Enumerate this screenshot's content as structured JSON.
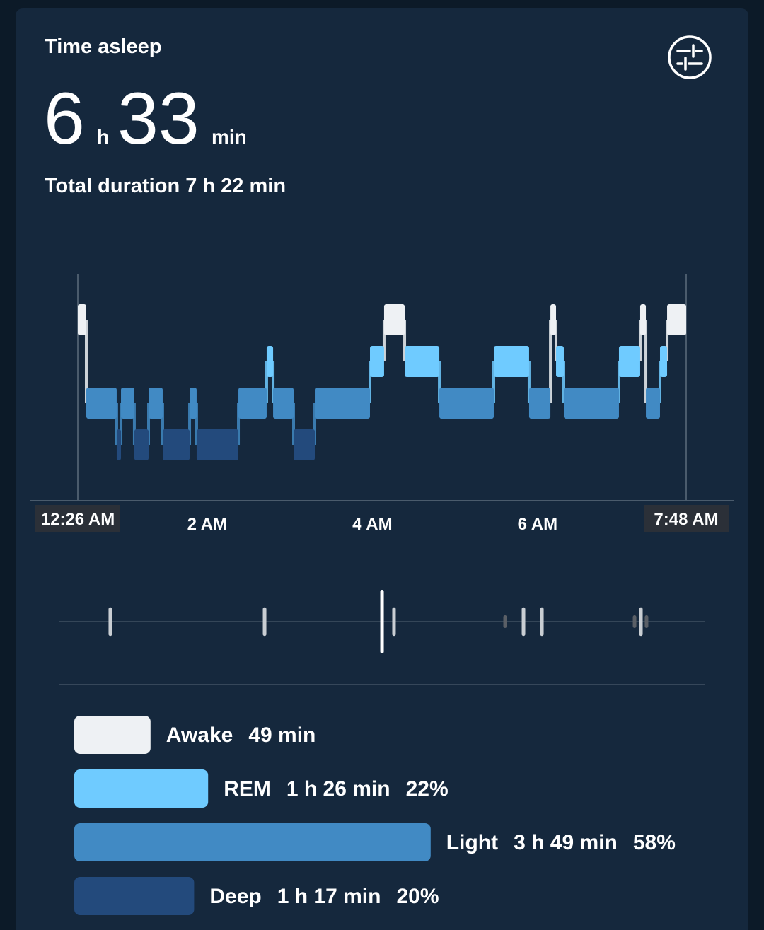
{
  "header": {
    "title": "Time asleep",
    "hours": 6,
    "hours_unit": "h",
    "minutes": 33,
    "minutes_unit": "min",
    "total": "Total duration 7 h 22 min"
  },
  "chart_data": [
    {
      "type": "hypnogram",
      "xlim": [
        0.4333,
        7.8
      ],
      "xticks": [
        {
          "value": 0.4333,
          "label": "12:26 AM"
        },
        {
          "value": 2,
          "label": "2 AM"
        },
        {
          "value": 4,
          "label": "4 AM"
        },
        {
          "value": 6,
          "label": "6 AM"
        },
        {
          "value": 7.8,
          "label": "7:48 AM"
        }
      ],
      "series": [
        {
          "name": "Awake",
          "color": "#eef1f4",
          "value": 49,
          "value_label": "49 min",
          "segments": [
            [
              0.4333,
              0.536
            ],
            [
              4.142,
              4.391
            ],
            [
              6.156,
              6.224
            ],
            [
              7.243,
              7.312
            ],
            [
              7.569,
              7.8
            ]
          ]
        },
        {
          "name": "REM",
          "color": "#6fcbff",
          "value": 86,
          "value_label": "1 h 26 min",
          "share": 22,
          "share_label": "22%",
          "segments": [
            [
              2.72,
              2.798
            ],
            [
              3.971,
              4.142
            ],
            [
              4.391,
              4.811
            ],
            [
              5.47,
              5.898
            ],
            [
              6.224,
              6.318
            ],
            [
              6.986,
              7.243
            ],
            [
              7.483,
              7.569
            ]
          ]
        },
        {
          "name": "Light",
          "color": "#418ac4",
          "value": 229,
          "value_label": "3 h 49 min",
          "share": 58,
          "share_label": "58%",
          "segments": [
            [
              0.536,
              0.904
            ],
            [
              0.956,
              1.118
            ],
            [
              1.29,
              1.461
            ],
            [
              1.787,
              1.872
            ],
            [
              2.378,
              2.72
            ],
            [
              2.798,
              3.046
            ],
            [
              3.303,
              3.971
            ],
            [
              4.811,
              5.47
            ],
            [
              5.898,
              6.156
            ],
            [
              6.318,
              6.986
            ],
            [
              7.312,
              7.483
            ]
          ]
        },
        {
          "name": "Deep",
          "color": "#234a7c",
          "value": 77,
          "value_label": "1 h 17 min",
          "share": 20,
          "share_label": "20%",
          "segments": [
            [
              0.904,
              0.956
            ],
            [
              1.118,
              1.29
            ],
            [
              1.461,
              1.787
            ],
            [
              1.872,
              2.378
            ],
            [
              3.046,
              3.303
            ]
          ]
        }
      ]
    },
    {
      "type": "events",
      "xlim": [
        0.4333,
        7.8
      ],
      "ylim": [
        0,
        100
      ],
      "series": [
        {
          "color": "#c9ced3",
          "x": [
            0.827,
            2.695,
            4.262,
            5.83,
            6.053,
            7.252
          ],
          "values": [
            45,
            45,
            45,
            45,
            45,
            45
          ]
        },
        {
          "color": "#ffffff",
          "x": [
            4.117
          ],
          "values": [
            100
          ]
        },
        {
          "color": "#5a5f66",
          "x": [
            5.607,
            7.175,
            7.32
          ],
          "values": [
            20,
            20,
            20
          ]
        }
      ]
    }
  ]
}
